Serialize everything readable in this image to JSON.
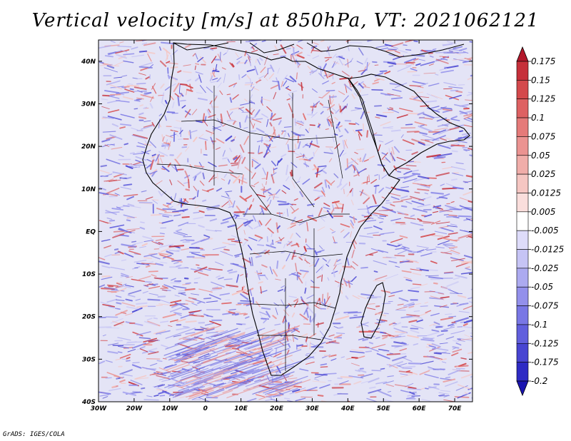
{
  "title": "Vertical velocity [m/s] at 850hPa, VT: 2021062121",
  "footer": "GrADS: IGES/COLA",
  "map": {
    "lon_labels": [
      "30W",
      "20W",
      "10W",
      "0",
      "10E",
      "20E",
      "30E",
      "40E",
      "50E",
      "60E",
      "70E"
    ],
    "lat_labels": [
      "40N",
      "30N",
      "20N",
      "10N",
      "EQ",
      "10S",
      "20S",
      "30S",
      "40S"
    ],
    "lon_range": [
      -30,
      75
    ],
    "lat_range": [
      -40,
      45
    ]
  },
  "colorbar": {
    "labels": [
      "0.175",
      "0.15",
      "0.125",
      "0.1",
      "0.075",
      "0.05",
      "0.025",
      "0.0125",
      "0.005",
      "-0.005",
      "-0.0125",
      "-0.025",
      "-0.05",
      "-0.075",
      "-0.1",
      "-0.125",
      "-0.175",
      "-0.2"
    ],
    "colors": [
      "#b2182b",
      "#c6303a",
      "#d4494c",
      "#de6162",
      "#e57a79",
      "#eb9391",
      "#f0ada9",
      "#f5c6c2",
      "#fadedc",
      "#ffffff",
      "#dedcfa",
      "#c6c4f5",
      "#acaaf0",
      "#9390eb",
      "#7977e5",
      "#615fdd",
      "#4845d2",
      "#2e2bc4",
      "#1a14b0"
    ]
  }
}
